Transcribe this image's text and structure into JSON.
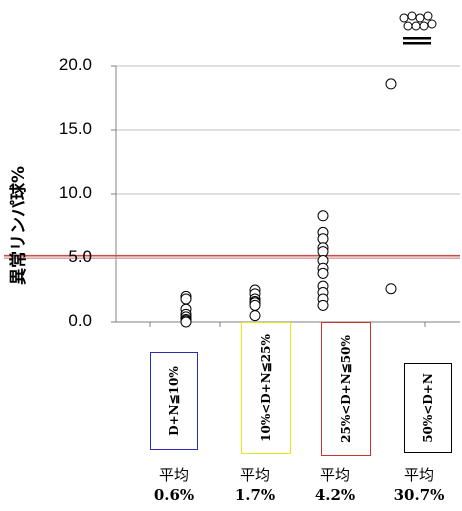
{
  "chart_data": {
    "type": "scatter",
    "ylabel": "異常リンパ球%",
    "ylim": [
      0,
      20
    ],
    "yticks": [
      "0.0",
      "5.0",
      "10.0",
      "15.0",
      "20.0"
    ],
    "categories": [
      "D+N≦10%",
      "10%<D+N≦25%",
      "25%<D+N≦50%",
      "50%<D+N"
    ],
    "category_box_colors": [
      "#2b2bb3",
      "#e6e61a",
      "#cc3333",
      "#000000"
    ],
    "averages": [
      {
        "label": "平均",
        "value": "0.6%"
      },
      {
        "label": "平均",
        "value": "1.7%"
      },
      {
        "label": "平均",
        "value": "4.2%"
      },
      {
        "label": "平均",
        "value": "30.7%"
      }
    ],
    "reference_line": {
      "y": 5.1,
      "color": "#c0504d"
    },
    "points": [
      [
        2.0,
        1.8,
        1.0,
        0.6,
        0.4,
        0.2,
        0.1,
        0.0
      ],
      [
        2.5,
        2.2,
        1.8,
        1.6,
        1.5,
        1.3,
        0.5
      ],
      [
        8.3,
        7.0,
        6.5,
        5.8,
        5.5,
        4.8,
        4.2,
        3.8,
        2.8,
        2.3,
        1.8,
        1.3
      ],
      [
        18.6,
        2.6
      ]
    ],
    "offscale_note": "values above 20.0 (cluster of points beyond axis)",
    "grid": true
  }
}
